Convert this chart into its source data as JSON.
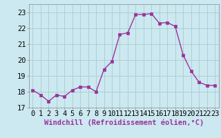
{
  "x": [
    0,
    1,
    2,
    3,
    4,
    5,
    6,
    7,
    8,
    9,
    10,
    11,
    12,
    13,
    14,
    15,
    16,
    17,
    18,
    19,
    20,
    21,
    22,
    23
  ],
  "y": [
    18.1,
    17.8,
    17.4,
    17.8,
    17.7,
    18.1,
    18.3,
    18.3,
    18.0,
    19.4,
    19.9,
    21.6,
    21.7,
    22.85,
    22.85,
    22.9,
    22.3,
    22.35,
    22.1,
    20.3,
    19.3,
    18.6,
    18.4,
    18.4
  ],
  "line_color": "#993399",
  "marker_color": "#993399",
  "bg_color": "#cce8f0",
  "grid_color": "#aacccc",
  "xlabel": "Windchill (Refroidissement éolien,°C)",
  "xlim": [
    -0.5,
    23.5
  ],
  "ylim": [
    17.0,
    23.5
  ],
  "yticks": [
    17,
    18,
    19,
    20,
    21,
    22,
    23
  ],
  "xticks": [
    0,
    1,
    2,
    3,
    4,
    5,
    6,
    7,
    8,
    9,
    10,
    11,
    12,
    13,
    14,
    15,
    16,
    17,
    18,
    19,
    20,
    21,
    22,
    23
  ],
  "xlabel_fontsize": 7.5,
  "tick_fontsize": 7.5,
  "line_width": 1.0,
  "marker_size": 2.5
}
